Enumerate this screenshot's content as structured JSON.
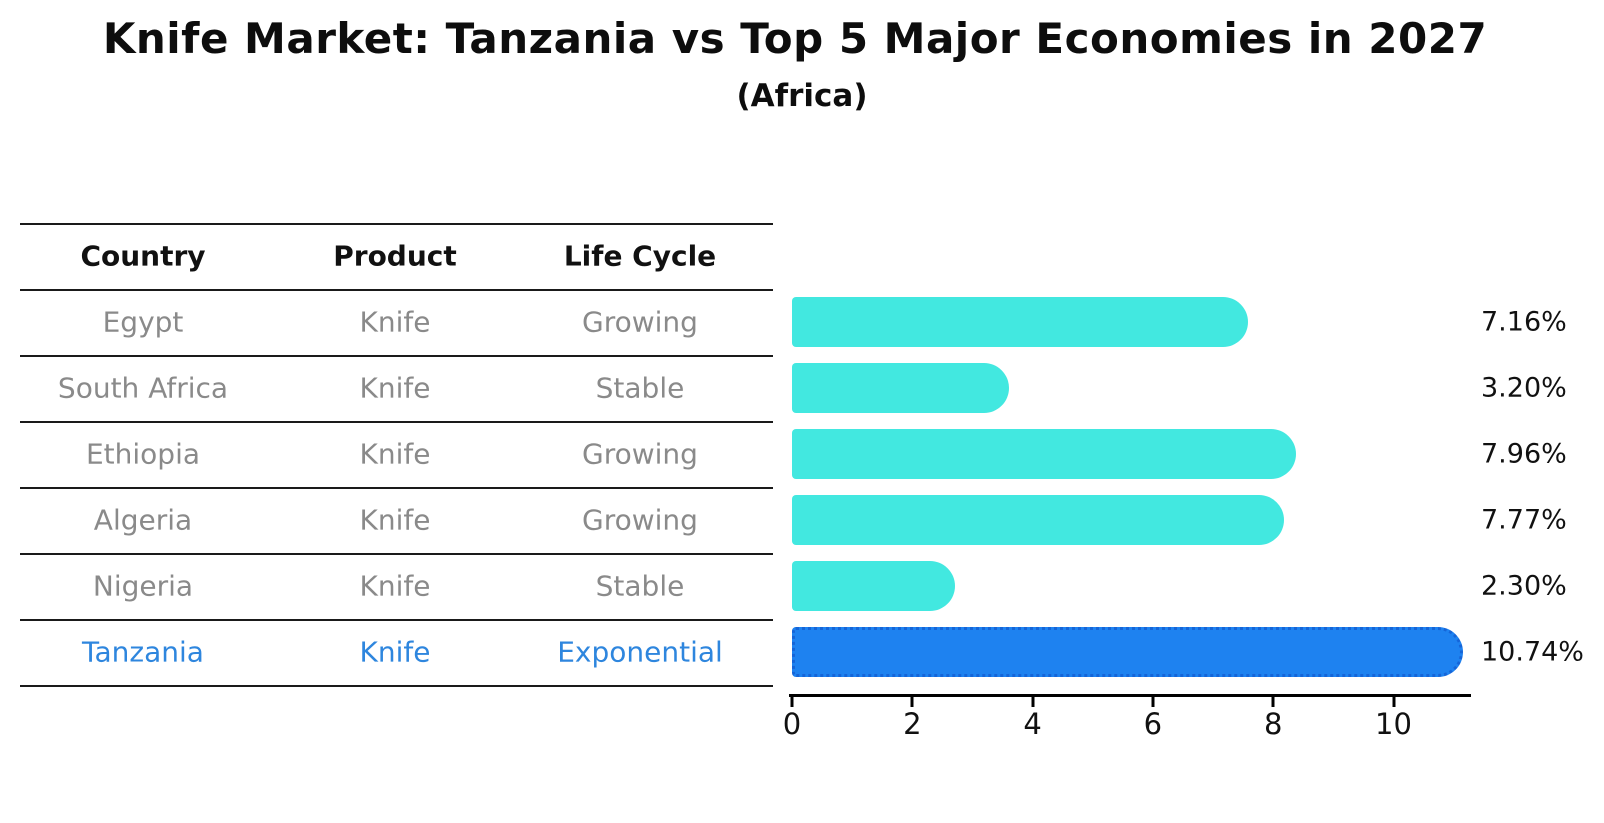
{
  "title": "Knife Market: Tanzania vs Top 5 Major Economies in 2027",
  "subtitle": "(Africa)",
  "table": {
    "headers": [
      "Country",
      "Product",
      "Life Cycle"
    ],
    "rows": [
      {
        "country": "Egypt",
        "product": "Knife",
        "life_cycle": "Growing",
        "highlight": false
      },
      {
        "country": "South Africa",
        "product": "Knife",
        "life_cycle": "Stable",
        "highlight": false
      },
      {
        "country": "Ethiopia",
        "product": "Knife",
        "life_cycle": "Growing",
        "highlight": false
      },
      {
        "country": "Algeria",
        "product": "Knife",
        "life_cycle": "Growing",
        "highlight": false
      },
      {
        "country": "Nigeria",
        "product": "Knife",
        "life_cycle": "Stable",
        "highlight": false
      },
      {
        "country": "Tanzania",
        "product": "Knife",
        "life_cycle": "Exponential",
        "highlight": true
      }
    ]
  },
  "chart_data": {
    "type": "bar",
    "orientation": "horizontal",
    "title": "Knife Market: Tanzania vs Top 5 Major Economies in 2027",
    "subtitle": "(Africa)",
    "categories": [
      "Egypt",
      "South Africa",
      "Ethiopia",
      "Algeria",
      "Nigeria",
      "Tanzania"
    ],
    "values": [
      7.16,
      3.2,
      7.96,
      7.77,
      2.3,
      10.74
    ],
    "value_labels": [
      "7.16%",
      "3.20%",
      "7.96%",
      "7.77%",
      "2.30%",
      "10.74%"
    ],
    "highlight_index": 5,
    "xlabel": "",
    "ylabel": "",
    "xlim": [
      0,
      11.3
    ],
    "xtick_labels": [
      "0",
      "2",
      "4",
      "6",
      "8",
      "10"
    ],
    "xtick_values": [
      0,
      2,
      4,
      6,
      8,
      10
    ],
    "grid": false,
    "legend": false,
    "bar_color": "#42e8e0",
    "highlight_bar_color": "#1e82f0",
    "highlight_bar_edge_color": "#1565d8",
    "highlight_text_color": "#2e86de",
    "row_text_color": "#8a8a8a"
  }
}
